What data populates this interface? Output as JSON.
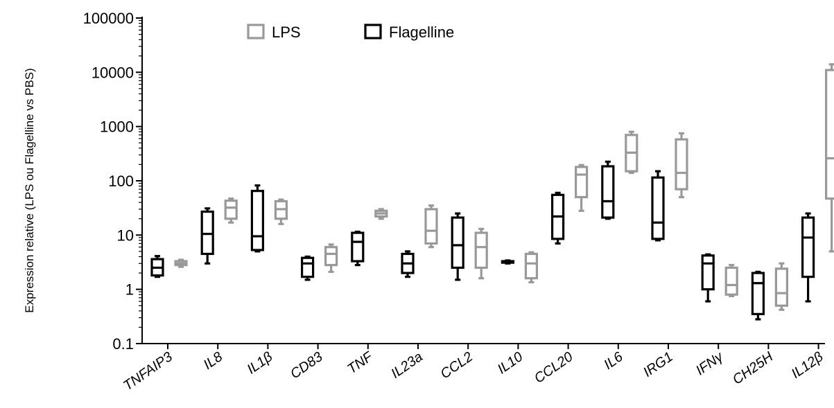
{
  "chart_data": {
    "type": "box",
    "ylabel": "Expression relative (LPS ou Flagelline vs PBS)",
    "xlabel": "",
    "yscale": "log",
    "ylim": [
      0.1,
      100000
    ],
    "yticks": [
      "0.1",
      "1",
      "10",
      "100",
      "1000",
      "10000",
      "100000"
    ],
    "legend_position": "top-left",
    "categories": [
      "TNFAIP3",
      "IL8",
      "IL1β",
      "CD83",
      "TNF",
      "IL23a",
      "CCL2",
      "IL10",
      "CCL20",
      "IL6",
      "IRG1",
      "IFNγ",
      "CH25H",
      "IL12β"
    ],
    "series": [
      {
        "name": "Flagelline",
        "color": "#000000",
        "boxes": [
          {
            "min": 1.7,
            "q1": 1.8,
            "median": 2.5,
            "q3": 3.6,
            "max": 4.1
          },
          {
            "min": 3.0,
            "q1": 4.5,
            "median": 10.5,
            "q3": 27,
            "max": 31
          },
          {
            "min": 5.0,
            "q1": 5.3,
            "median": 9.5,
            "q3": 65,
            "max": 82
          },
          {
            "min": 1.5,
            "q1": 1.7,
            "median": 3.0,
            "q3": 3.8,
            "max": 4.0
          },
          {
            "min": 2.8,
            "q1": 3.3,
            "median": 7.5,
            "q3": 11,
            "max": 11.5
          },
          {
            "min": 1.7,
            "q1": 2.0,
            "median": 3.0,
            "q3": 4.5,
            "max": 5.0
          },
          {
            "min": 1.5,
            "q1": 2.5,
            "median": 6.5,
            "q3": 21,
            "max": 25
          },
          {
            "min": 3.0,
            "q1": 3.1,
            "median": 3.2,
            "q3": 3.3,
            "max": 3.4
          },
          {
            "min": 7.0,
            "q1": 8.5,
            "median": 22,
            "q3": 55,
            "max": 60
          },
          {
            "min": 20,
            "q1": 21,
            "median": 42,
            "q3": 185,
            "max": 225
          },
          {
            "min": 8.0,
            "q1": 8.5,
            "median": 17,
            "q3": 115,
            "max": 150
          },
          {
            "min": 0.6,
            "q1": 1.0,
            "median": 3.0,
            "q3": 4.2,
            "max": 4.4
          },
          {
            "min": 0.28,
            "q1": 0.35,
            "median": 1.3,
            "q3": 2.0,
            "max": 2.1
          },
          {
            "min": 0.6,
            "q1": 1.7,
            "median": 9.0,
            "q3": 21,
            "max": 25
          }
        ]
      },
      {
        "name": "LPS",
        "color": "#999999",
        "boxes": [
          {
            "min": 2.6,
            "q1": 2.8,
            "median": 3.0,
            "q3": 3.3,
            "max": 3.5
          },
          {
            "min": 17,
            "q1": 20,
            "median": 32,
            "q3": 43,
            "max": 47
          },
          {
            "min": 16,
            "q1": 20,
            "median": 30,
            "q3": 42,
            "max": 45
          },
          {
            "min": 2.1,
            "q1": 2.8,
            "median": 4.5,
            "q3": 6.0,
            "max": 6.7
          },
          {
            "min": 20,
            "q1": 22,
            "median": 25,
            "q3": 28,
            "max": 30
          },
          {
            "min": 6.0,
            "q1": 7.0,
            "median": 12,
            "q3": 30,
            "max": 35
          },
          {
            "min": 1.6,
            "q1": 2.5,
            "median": 6.0,
            "q3": 11,
            "max": 13
          },
          {
            "min": 1.35,
            "q1": 1.6,
            "median": 3.0,
            "q3": 4.5,
            "max": 4.8
          },
          {
            "min": 28,
            "q1": 50,
            "median": 130,
            "q3": 180,
            "max": 195
          },
          {
            "min": 140,
            "q1": 150,
            "median": 330,
            "q3": 700,
            "max": 800
          },
          {
            "min": 50,
            "q1": 70,
            "median": 140,
            "q3": 580,
            "max": 750
          },
          {
            "min": 0.75,
            "q1": 0.8,
            "median": 1.2,
            "q3": 2.5,
            "max": 2.8
          },
          {
            "min": 0.42,
            "q1": 0.5,
            "median": 0.85,
            "q3": 2.4,
            "max": 3.0
          },
          {
            "min": 5.0,
            "q1": 47,
            "median": 260,
            "q3": 11000,
            "max": 14000
          }
        ]
      }
    ]
  }
}
